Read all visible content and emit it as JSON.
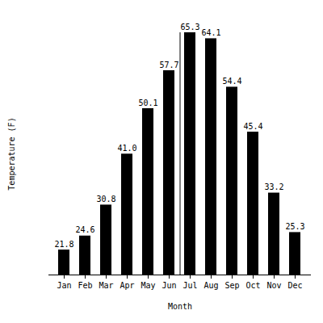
{
  "chart_data": {
    "type": "bar",
    "xlabel": "Month",
    "ylabel": "Temperature (F)",
    "categories": [
      "Jan",
      "Feb",
      "Mar",
      "Apr",
      "May",
      "Jun",
      "Jul",
      "Aug",
      "Sep",
      "Oct",
      "Nov",
      "Dec"
    ],
    "values": [
      21.8,
      24.6,
      30.8,
      41.0,
      50.1,
      57.7,
      65.3,
      64.1,
      54.4,
      45.4,
      33.2,
      25.3
    ],
    "value_labels": [
      "21.8",
      "24.6",
      "30.8",
      "41.0",
      "50.1",
      "57.7",
      "65.3",
      "64.1",
      "54.4",
      "45.4",
      "33.2",
      "25.3"
    ],
    "color": "#000000",
    "ylim": [
      16.8,
      65.3
    ],
    "tick_labels": "x",
    "data_labels": true,
    "grid": false
  }
}
